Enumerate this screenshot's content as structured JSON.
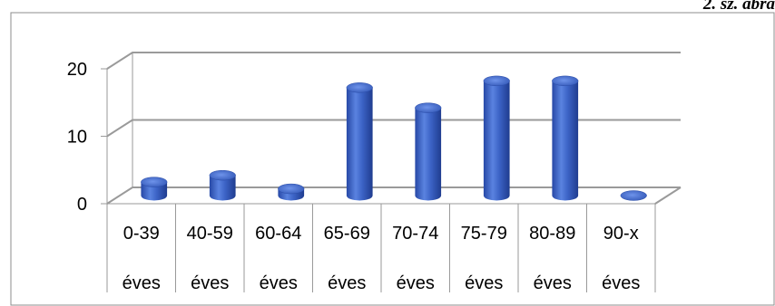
{
  "figure_caption": "2. sz. ábra",
  "chart_data": {
    "type": "bar",
    "categories": [
      "0-39 éves",
      "40-59 éves",
      "60-64 éves",
      "65-69 éves",
      "70-74 éves",
      "75-79 éves",
      "80-89 éves",
      "90-x éves"
    ],
    "category_lines": [
      [
        "0-39",
        "éves"
      ],
      [
        "40-59",
        "éves"
      ],
      [
        "60-64",
        "éves"
      ],
      [
        "65-69",
        "éves"
      ],
      [
        "70-74",
        "éves"
      ],
      [
        "75-79",
        "éves"
      ],
      [
        "80-89",
        "éves"
      ],
      [
        "90-x",
        "éves"
      ]
    ],
    "values": [
      2,
      3,
      1,
      16,
      13,
      17,
      17,
      0
    ],
    "yticks": [
      "0",
      "10",
      "20"
    ],
    "ylim": [
      0,
      20
    ],
    "grid": true,
    "bar_color": "#3A63C4",
    "title": "",
    "xlabel": "",
    "ylabel": ""
  }
}
